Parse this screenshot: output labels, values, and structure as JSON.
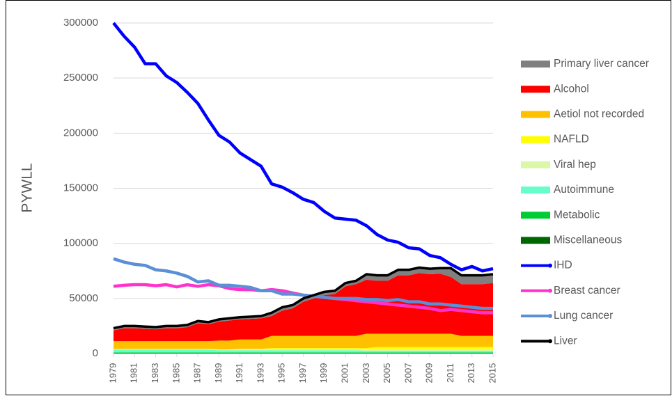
{
  "chart_data": {
    "type": "area",
    "y_label": "PYWLL",
    "x": [
      1979,
      1980,
      1981,
      1982,
      1983,
      1984,
      1985,
      1986,
      1987,
      1988,
      1989,
      1990,
      1991,
      1992,
      1993,
      1994,
      1995,
      1996,
      1997,
      1998,
      1999,
      2000,
      2001,
      2002,
      2003,
      2004,
      2005,
      2006,
      2007,
      2008,
      2009,
      2010,
      2011,
      2012,
      2013,
      2014,
      2015
    ],
    "xlim": [
      1979,
      2015
    ],
    "xticks": [
      1979,
      1981,
      1983,
      1985,
      1987,
      1989,
      1991,
      1993,
      1995,
      1997,
      1999,
      2001,
      2003,
      2005,
      2007,
      2009,
      2011,
      2013,
      2015
    ],
    "ylim": [
      0,
      300000
    ],
    "yticks": [
      0,
      50000,
      100000,
      150000,
      200000,
      250000,
      300000
    ],
    "grid": true,
    "stacked": true,
    "legend": "right",
    "series": [
      {
        "name": "Primary liver cancer",
        "type": "area",
        "color": "#808080",
        "values": [
          2000,
          2000,
          2000,
          2000,
          2000,
          2000,
          2000,
          2000,
          2000,
          2000,
          2000,
          2000,
          2000,
          2000,
          2000,
          3000,
          3000,
          3000,
          3000,
          3000,
          3000,
          3000,
          3000,
          3000,
          5000,
          5000,
          5000,
          5000,
          5000,
          5000,
          5000,
          5000,
          8000,
          8000,
          8000,
          8000,
          8000
        ]
      },
      {
        "name": "Alcohol",
        "type": "area",
        "color": "#ff0000",
        "values": [
          9700,
          11700,
          11700,
          11200,
          10700,
          11700,
          11700,
          12700,
          16200,
          15200,
          17200,
          18200,
          18200,
          18700,
          19200,
          18000,
          23000,
          25000,
          31000,
          34000,
          37000,
          38000,
          45000,
          47000,
          49000,
          48000,
          48000,
          53000,
          53000,
          55000,
          54000,
          54500,
          51500,
          47000,
          47000,
          47000,
          48000
        ]
      },
      {
        "name": "Aetiol not recorded",
        "type": "area",
        "color": "#ffc000",
        "values": [
          7000,
          7000,
          7000,
          7000,
          7000,
          7000,
          7000,
          7000,
          7000,
          7000,
          8000,
          8000,
          8500,
          8500,
          8500,
          11000,
          11000,
          11000,
          11000,
          11000,
          11000,
          11000,
          11000,
          11000,
          13000,
          12000,
          12000,
          12000,
          12000,
          12000,
          12000,
          12000,
          12000,
          10000,
          10000,
          10000,
          10000
        ]
      },
      {
        "name": "NAFLD",
        "type": "area",
        "color": "#ffff00",
        "values": [
          300,
          300,
          300,
          300,
          300,
          300,
          300,
          300,
          300,
          300,
          300,
          300,
          300,
          300,
          300,
          1000,
          1000,
          1000,
          1000,
          1000,
          1000,
          1000,
          1000,
          1000,
          1000,
          2000,
          2000,
          2000,
          2000,
          2000,
          2000,
          2000,
          2000,
          2000,
          2000,
          2000,
          2000
        ]
      },
      {
        "name": "Viral hep",
        "type": "area",
        "color": "#ddf7a8",
        "values": [
          500,
          500,
          500,
          500,
          500,
          500,
          500,
          500,
          500,
          500,
          500,
          500,
          1000,
          1000,
          1000,
          1000,
          1000,
          1000,
          1000,
          1000,
          1000,
          1000,
          1000,
          1000,
          1500,
          1500,
          1500,
          1500,
          1500,
          1500,
          1500,
          1500,
          1500,
          1500,
          1500,
          1500,
          1500
        ]
      },
      {
        "name": "Autoimmune",
        "type": "area",
        "color": "#66ffcc",
        "values": [
          2500,
          2500,
          2500,
          2500,
          2500,
          2500,
          2500,
          2500,
          2500,
          2500,
          2000,
          2000,
          2000,
          2000,
          2000,
          2000,
          2000,
          2000,
          2000,
          2000,
          2000,
          2000,
          2000,
          2000,
          1500,
          1500,
          1500,
          1500,
          1500,
          1500,
          1500,
          1500,
          1500,
          1500,
          1500,
          1500,
          1500
        ]
      },
      {
        "name": "Metabolic",
        "type": "area",
        "color": "#00cc33",
        "values": [
          700,
          700,
          700,
          700,
          700,
          700,
          700,
          700,
          700,
          700,
          700,
          700,
          700,
          700,
          700,
          700,
          700,
          700,
          700,
          700,
          700,
          700,
          700,
          700,
          700,
          700,
          700,
          700,
          700,
          700,
          700,
          700,
          700,
          700,
          700,
          700,
          700
        ]
      },
      {
        "name": "Miscellaneous",
        "type": "area",
        "color": "#006600",
        "values": [
          300,
          300,
          300,
          300,
          300,
          300,
          300,
          300,
          300,
          300,
          300,
          300,
          300,
          300,
          300,
          300,
          300,
          300,
          300,
          300,
          300,
          300,
          300,
          300,
          300,
          300,
          300,
          300,
          300,
          300,
          300,
          300,
          300,
          300,
          300,
          300,
          300
        ]
      },
      {
        "name": "IHD",
        "type": "line",
        "color": "#0000ff",
        "values": [
          300000,
          288000,
          278000,
          263000,
          263000,
          252000,
          246000,
          237000,
          227000,
          212000,
          198000,
          192000,
          182000,
          176000,
          170000,
          154000,
          151000,
          146000,
          140000,
          137000,
          129000,
          123000,
          122000,
          121000,
          116000,
          108000,
          103000,
          101000,
          96000,
          95000,
          89000,
          87000,
          81000,
          76000,
          79000,
          75000,
          77000
        ]
      },
      {
        "name": "Breast cancer",
        "type": "line",
        "color": "#ff33cc",
        "values": [
          61000,
          62000,
          62500,
          62500,
          61500,
          62500,
          60500,
          62500,
          61000,
          62500,
          61500,
          59000,
          58000,
          58000,
          57000,
          58000,
          57000,
          55000,
          53000,
          52000,
          51000,
          50000,
          49000,
          48000,
          47000,
          46000,
          45000,
          44000,
          43000,
          42000,
          41000,
          39000,
          40000,
          39000,
          38000,
          37000,
          37000
        ]
      },
      {
        "name": "Lung cancer",
        "type": "line",
        "color": "#5b8fd6",
        "values": [
          86000,
          83000,
          81000,
          80000,
          76000,
          75000,
          73000,
          70000,
          65000,
          66000,
          62000,
          62000,
          61000,
          60000,
          57000,
          57000,
          54000,
          54000,
          53000,
          52000,
          51000,
          50000,
          50000,
          50000,
          49000,
          49000,
          48000,
          49000,
          47000,
          47000,
          45000,
          45000,
          44000,
          43000,
          42000,
          41000,
          41000
        ]
      },
      {
        "name": "Liver",
        "type": "line",
        "color": "#000000",
        "values": [
          23000,
          25000,
          25000,
          24500,
          24000,
          25000,
          25000,
          26000,
          29500,
          28500,
          31000,
          32000,
          33000,
          33500,
          34000,
          37000,
          42000,
          44000,
          50000,
          53000,
          56000,
          57000,
          64000,
          66000,
          72000,
          71000,
          71000,
          76000,
          76000,
          78000,
          77000,
          77500,
          77500,
          71000,
          71000,
          71000,
          72000
        ]
      }
    ]
  }
}
